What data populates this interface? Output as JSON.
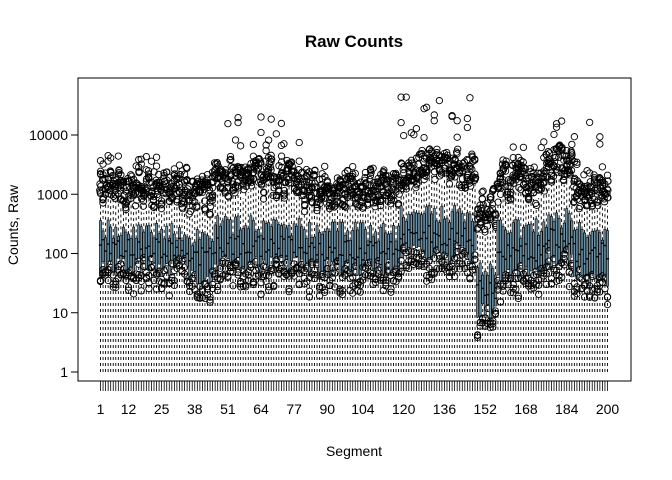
{
  "chart_data": {
    "type": "boxplot",
    "title": "Raw Counts",
    "xlabel": "Segment",
    "ylabel": "Counts, Raw",
    "y_scale": "log10",
    "ylim": [
      1,
      80000
    ],
    "x_count": 200,
    "x_tick_labels": [
      "1",
      "12",
      "25",
      "38",
      "51",
      "64",
      "77",
      "90",
      "104",
      "120",
      "136",
      "152",
      "168",
      "184",
      "200"
    ],
    "x_tick_positions": [
      1,
      12,
      25,
      38,
      51,
      64,
      77,
      90,
      104,
      120,
      136,
      152,
      168,
      184,
      200
    ],
    "y_ticks": [
      1,
      10,
      100,
      1000,
      10000
    ],
    "y_tick_labels": [
      "1",
      "10",
      "100",
      "1000",
      "10000"
    ],
    "box_fill": "#6b8fa3",
    "region_profile": [
      {
        "from": 1,
        "to": 35,
        "q1": 60,
        "median": 120,
        "q3": 250,
        "whisker_low": 1,
        "whisker_high": 700,
        "outlier_max": 4500
      },
      {
        "from": 36,
        "to": 45,
        "q1": 40,
        "median": 90,
        "q3": 200,
        "whisker_low": 1,
        "whisker_high": 600,
        "outlier_max": 2500
      },
      {
        "from": 46,
        "to": 60,
        "q1": 70,
        "median": 140,
        "q3": 300,
        "whisker_low": 1,
        "whisker_high": 1200,
        "outlier_max": 20000
      },
      {
        "from": 61,
        "to": 80,
        "q1": 60,
        "median": 130,
        "q3": 280,
        "whisker_low": 1,
        "whisker_high": 1100,
        "outlier_max": 24000
      },
      {
        "from": 81,
        "to": 118,
        "q1": 55,
        "median": 110,
        "q3": 240,
        "whisker_low": 1,
        "whisker_high": 700,
        "outlier_max": 3000
      },
      {
        "from": 119,
        "to": 148,
        "q1": 100,
        "median": 200,
        "q3": 450,
        "whisker_low": 1,
        "whisker_high": 1600,
        "outlier_max": 55000
      },
      {
        "from": 149,
        "to": 156,
        "q1": 10,
        "median": 25,
        "q3": 60,
        "whisker_low": 1,
        "whisker_high": 300,
        "outlier_max": 900
      },
      {
        "from": 157,
        "to": 175,
        "q1": 50,
        "median": 110,
        "q3": 260,
        "whisker_low": 1,
        "whisker_high": 900,
        "outlier_max": 8000
      },
      {
        "from": 176,
        "to": 186,
        "q1": 80,
        "median": 180,
        "q3": 400,
        "whisker_low": 1,
        "whisker_high": 2000,
        "outlier_max": 28000
      },
      {
        "from": 187,
        "to": 200,
        "q1": 40,
        "median": 100,
        "q3": 230,
        "whisker_low": 1,
        "whisker_high": 800,
        "outlier_max": 17000
      }
    ]
  }
}
